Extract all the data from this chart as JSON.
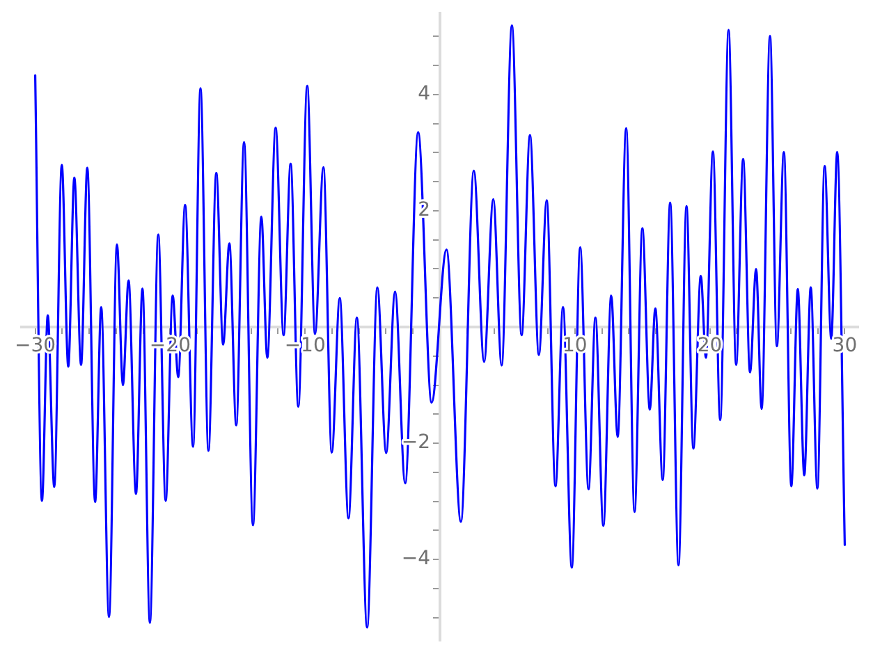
{
  "chart_data": {
    "type": "line",
    "x": [
      -30,
      -29.5,
      -29.07,
      -28.59,
      -28.03,
      -27.55,
      -27.1,
      -26.6,
      -26.14,
      -25.56,
      -25.11,
      -24.53,
      -23.94,
      -23.5,
      -23.08,
      -22.53,
      -22.05,
      -21.5,
      -20.88,
      -20.33,
      -19.81,
      -19.4,
      -18.89,
      -18.3,
      -17.75,
      -17.16,
      -16.58,
      -16.07,
      -15.61,
      -15.1,
      -14.52,
      -13.86,
      -13.24,
      -12.8,
      -12.18,
      -11.59,
      -11.07,
      -10.5,
      -9.84,
      -9.26,
      -8.64,
      -8.02,
      -7.43,
      -6.78,
      -6.16,
      -5.4,
      -4.64,
      -3.99,
      -3.33,
      -2.58,
      -1.62,
      -0.62,
      0.48,
      1.55,
      2.51,
      3.27,
      3.95,
      4.57,
      5.33,
      6.05,
      6.67,
      7.33,
      7.91,
      8.56,
      9.12,
      9.77,
      10.39,
      11.01,
      11.52,
      12.11,
      12.69,
      13.17,
      13.8,
      14.42,
      15.0,
      15.55,
      15.96,
      16.51,
      17.06,
      17.68,
      18.27,
      18.78,
      19.33,
      19.71,
      20.23,
      20.77,
      21.39,
      21.95,
      22.47,
      22.98,
      23.43,
      23.84,
      24.46,
      24.97,
      25.49,
      26.04,
      26.52,
      27.0,
      27.48,
      27.97,
      28.51,
      29.0,
      29.44,
      30
    ],
    "series": [
      {
        "color": "#0000ff",
        "values": [
          4.33,
          -2.99,
          0.2,
          -2.75,
          2.79,
          -0.68,
          2.57,
          -0.65,
          2.74,
          -3.01,
          0.34,
          -4.99,
          1.42,
          -1.0,
          0.8,
          -2.87,
          0.66,
          -5.09,
          1.59,
          -2.99,
          0.54,
          -0.86,
          2.1,
          -2.06,
          4.11,
          -2.13,
          2.65,
          -0.3,
          1.44,
          -1.69,
          3.18,
          -3.41,
          1.9,
          -0.53,
          3.43,
          -0.14,
          2.81,
          -1.37,
          4.15,
          -0.12,
          2.75,
          -2.16,
          0.5,
          -3.29,
          0.16,
          -5.17,
          0.68,
          -2.17,
          0.61,
          -2.69,
          3.35,
          -1.3,
          1.33,
          -3.35,
          2.69,
          -0.6,
          2.2,
          -0.66,
          5.19,
          -0.14,
          3.3,
          -0.48,
          2.18,
          -2.74,
          0.34,
          -4.14,
          1.37,
          -2.79,
          0.16,
          -3.42,
          0.54,
          -1.89,
          3.42,
          -3.18,
          1.7,
          -1.42,
          0.32,
          -2.63,
          2.14,
          -4.1,
          2.08,
          -2.09,
          0.88,
          -0.53,
          3.02,
          -1.6,
          5.11,
          -0.65,
          2.89,
          -0.78,
          1.0,
          -1.41,
          5.01,
          -0.33,
          3.01,
          -2.74,
          0.65,
          -2.55,
          0.68,
          -2.78,
          2.77,
          -0.2,
          3.01,
          -3.75
        ]
      }
    ],
    "xlim": [
      -31,
      31
    ],
    "ylim": [
      -5.4,
      5.4
    ],
    "xticks": [
      {
        "value": -30,
        "label": "−30"
      },
      {
        "value": -28,
        "label": null
      },
      {
        "value": -26,
        "label": null
      },
      {
        "value": -24,
        "label": null
      },
      {
        "value": -22,
        "label": null
      },
      {
        "value": -20,
        "label": "−20"
      },
      {
        "value": -18,
        "label": null
      },
      {
        "value": -16,
        "label": null
      },
      {
        "value": -14,
        "label": null
      },
      {
        "value": -12,
        "label": null
      },
      {
        "value": -10,
        "label": "−10"
      },
      {
        "value": -8,
        "label": null
      },
      {
        "value": -6,
        "label": null
      },
      {
        "value": -4,
        "label": null
      },
      {
        "value": -2,
        "label": null
      },
      {
        "value": 2,
        "label": null
      },
      {
        "value": 4,
        "label": null
      },
      {
        "value": 6,
        "label": null
      },
      {
        "value": 8,
        "label": null
      },
      10,
      {
        "value": 12,
        "label": null
      },
      {
        "value": 14,
        "label": null
      },
      {
        "value": 16,
        "label": null
      },
      {
        "value": 18,
        "label": null
      },
      20,
      {
        "value": 22,
        "label": null
      },
      {
        "value": 24,
        "label": null
      },
      {
        "value": 26,
        "label": null
      },
      {
        "value": 28,
        "label": null
      },
      30
    ],
    "yticks": [
      {
        "value": -5,
        "label": null
      },
      {
        "value": -4.5,
        "label": null
      },
      {
        "value": -4,
        "label": "−4"
      },
      {
        "value": -3.5,
        "label": null
      },
      {
        "value": -3,
        "label": null
      },
      {
        "value": -2.5,
        "label": null
      },
      {
        "value": -2,
        "label": "−2"
      },
      {
        "value": -1.5,
        "label": null
      },
      {
        "value": -1,
        "label": null
      },
      {
        "value": -0.5,
        "label": null
      },
      {
        "value": 0.5,
        "label": null
      },
      {
        "value": 1,
        "label": null
      },
      {
        "value": 1.5,
        "label": null
      },
      2,
      {
        "value": 2.5,
        "label": null
      },
      {
        "value": 3,
        "label": null
      },
      {
        "value": 3.5,
        "label": null
      },
      4,
      {
        "value": 4.5,
        "label": null
      },
      {
        "value": 5,
        "label": null
      }
    ]
  }
}
